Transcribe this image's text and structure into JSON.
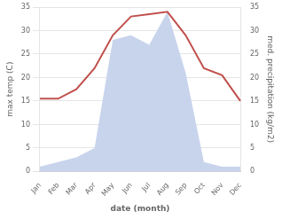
{
  "chart_data": {
    "type": "line",
    "categories": [
      "Jan",
      "Feb",
      "Mar",
      "Apr",
      "May",
      "Jun",
      "Jul",
      "Aug",
      "Sep",
      "Oct",
      "Nov",
      "Dec"
    ],
    "series": [
      {
        "values": [
          15.5,
          15.5,
          17.5,
          22.0,
          29.0,
          33.0,
          33.5,
          34.0,
          29.0,
          22.0,
          20.5,
          15.0
        ],
        "color": "#c0504d"
      },
      {
        "type": "area",
        "axis": "y2",
        "values": [
          1.0,
          2.0,
          3.0,
          5.0,
          28.0,
          29.0,
          27.0,
          34.0,
          21.0,
          2.0,
          1.0,
          1.0
        ],
        "color": "#c8d4ec"
      }
    ],
    "xlabel": "date (month)",
    "ylabel": "max temp (C)",
    "y2label": "med. precipitation (kg/m2)",
    "ylim": [
      0,
      35
    ],
    "yticks": [
      0,
      5,
      10,
      15,
      20,
      25,
      30,
      35
    ],
    "y2lim": [
      0,
      35
    ],
    "y2ticks": [
      0,
      5,
      10,
      15,
      20,
      25,
      30,
      35
    ],
    "grid": true
  }
}
